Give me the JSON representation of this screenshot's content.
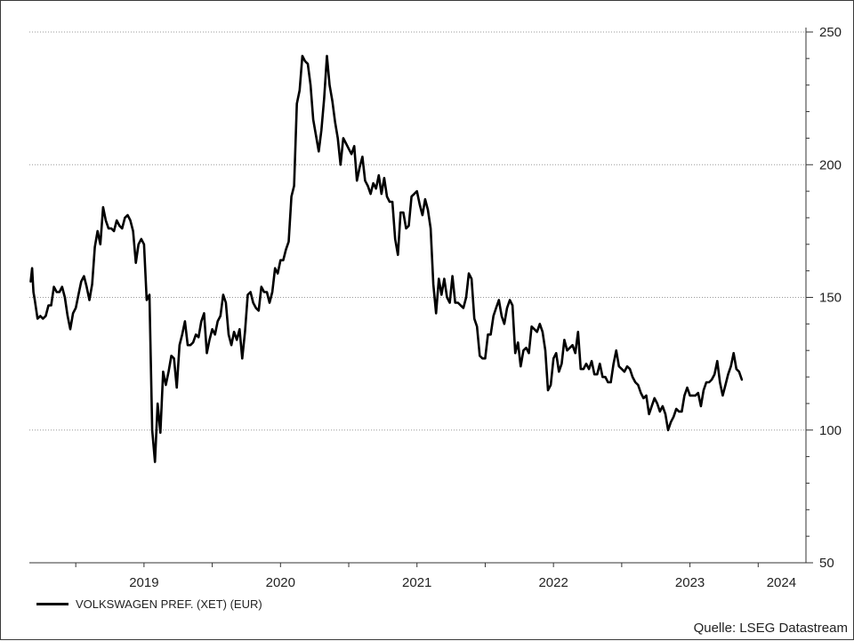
{
  "chart_data": {
    "type": "line",
    "title": "",
    "xlabel": "",
    "ylabel": "",
    "ylim": [
      50,
      250
    ],
    "yticks": [
      50,
      100,
      150,
      200,
      250
    ],
    "ytick_labels": [
      "50",
      "100",
      "150",
      "200",
      "250"
    ],
    "xlim": [
      2018.66,
      2024.35
    ],
    "xticks": [
      2019,
      2020,
      2021,
      2022,
      2023,
      2024
    ],
    "xtick_labels": [
      "2019",
      "2020",
      "2021",
      "2022",
      "2023",
      "2024"
    ],
    "grid": "horizontal dotted",
    "axis_side": "right",
    "series": [
      {
        "name": "VOLKSWAGEN PREF. (XET) (EUR)",
        "color": "#000000",
        "points": [
          [
            2018.67,
            156
          ],
          [
            2018.68,
            161
          ],
          [
            2018.69,
            152
          ],
          [
            2018.7,
            149
          ],
          [
            2018.72,
            142
          ],
          [
            2018.74,
            143
          ],
          [
            2018.76,
            142
          ],
          [
            2018.78,
            143
          ],
          [
            2018.8,
            147
          ],
          [
            2018.82,
            147
          ],
          [
            2018.84,
            154
          ],
          [
            2018.86,
            152
          ],
          [
            2018.88,
            152
          ],
          [
            2018.9,
            154
          ],
          [
            2018.92,
            150
          ],
          [
            2018.94,
            143
          ],
          [
            2018.96,
            138
          ],
          [
            2018.98,
            144
          ],
          [
            2019.0,
            146
          ],
          [
            2019.02,
            151
          ],
          [
            2019.04,
            156
          ],
          [
            2019.06,
            158
          ],
          [
            2019.08,
            154
          ],
          [
            2019.1,
            149
          ],
          [
            2019.12,
            155
          ],
          [
            2019.14,
            169
          ],
          [
            2019.16,
            175
          ],
          [
            2019.18,
            170
          ],
          [
            2019.2,
            184
          ],
          [
            2019.22,
            179
          ],
          [
            2019.24,
            176
          ],
          [
            2019.26,
            176
          ],
          [
            2019.28,
            175
          ],
          [
            2019.3,
            179
          ],
          [
            2019.32,
            177
          ],
          [
            2019.34,
            176
          ],
          [
            2019.36,
            180
          ],
          [
            2019.38,
            181
          ],
          [
            2019.4,
            179
          ],
          [
            2019.42,
            175
          ],
          [
            2019.44,
            163
          ],
          [
            2019.46,
            170
          ],
          [
            2019.48,
            172
          ],
          [
            2019.5,
            170
          ],
          [
            2019.52,
            149
          ],
          [
            2019.54,
            151
          ],
          [
            2019.56,
            100
          ],
          [
            2019.58,
            88
          ],
          [
            2019.6,
            110
          ],
          [
            2019.62,
            99
          ],
          [
            2019.64,
            122
          ],
          [
            2019.66,
            117
          ],
          [
            2019.68,
            122
          ],
          [
            2019.7,
            128
          ],
          [
            2019.72,
            127
          ],
          [
            2019.74,
            116
          ],
          [
            2019.76,
            132
          ],
          [
            2019.78,
            136
          ],
          [
            2019.8,
            141
          ],
          [
            2019.82,
            132
          ],
          [
            2019.84,
            132
          ],
          [
            2019.86,
            133
          ],
          [
            2019.88,
            136
          ],
          [
            2019.9,
            135
          ],
          [
            2019.92,
            141
          ],
          [
            2019.94,
            144
          ],
          [
            2019.96,
            129
          ],
          [
            2019.98,
            134
          ],
          [
            2020.0,
            138
          ],
          [
            2020.02,
            136
          ],
          [
            2020.04,
            141
          ],
          [
            2020.06,
            143
          ],
          [
            2020.08,
            151
          ],
          [
            2020.1,
            148
          ],
          [
            2020.12,
            136
          ],
          [
            2020.14,
            132
          ],
          [
            2020.16,
            137
          ],
          [
            2020.18,
            134
          ],
          [
            2020.2,
            138
          ],
          [
            2020.22,
            127
          ],
          [
            2020.24,
            137
          ],
          [
            2020.26,
            151
          ],
          [
            2020.28,
            152
          ],
          [
            2020.3,
            148
          ],
          [
            2020.32,
            146
          ],
          [
            2020.34,
            145
          ],
          [
            2020.36,
            154
          ],
          [
            2020.38,
            152
          ],
          [
            2020.4,
            152
          ],
          [
            2020.42,
            148
          ],
          [
            2020.44,
            152
          ],
          [
            2020.46,
            161
          ],
          [
            2020.48,
            159
          ],
          [
            2020.5,
            164
          ],
          [
            2020.52,
            164
          ],
          [
            2020.54,
            168
          ],
          [
            2020.56,
            171
          ],
          [
            2020.58,
            188
          ],
          [
            2020.6,
            192
          ],
          [
            2020.62,
            223
          ],
          [
            2020.64,
            228
          ],
          [
            2020.66,
            241
          ],
          [
            2020.68,
            239
          ],
          [
            2020.7,
            238
          ],
          [
            2020.72,
            230
          ],
          [
            2020.74,
            217
          ],
          [
            2020.76,
            211
          ],
          [
            2020.78,
            205
          ],
          [
            2020.8,
            213
          ],
          [
            2020.82,
            225
          ],
          [
            2020.84,
            241
          ],
          [
            2020.86,
            230
          ],
          [
            2020.88,
            224
          ],
          [
            2020.9,
            216
          ],
          [
            2020.92,
            210
          ],
          [
            2020.94,
            200
          ],
          [
            2020.96,
            210
          ],
          [
            2020.98,
            208
          ],
          [
            2021.0,
            206
          ],
          [
            2021.02,
            204
          ],
          [
            2021.04,
            207
          ],
          [
            2021.06,
            194
          ],
          [
            2021.08,
            199
          ],
          [
            2021.1,
            203
          ],
          [
            2021.12,
            194
          ],
          [
            2021.14,
            192
          ],
          [
            2021.16,
            189
          ],
          [
            2021.18,
            193
          ],
          [
            2021.2,
            191
          ],
          [
            2021.22,
            196
          ],
          [
            2021.24,
            189
          ],
          [
            2021.26,
            195
          ],
          [
            2021.28,
            188
          ],
          [
            2021.3,
            186
          ],
          [
            2021.32,
            186
          ],
          [
            2021.34,
            172
          ],
          [
            2021.36,
            166
          ],
          [
            2021.38,
            182
          ],
          [
            2021.4,
            182
          ],
          [
            2021.42,
            176
          ],
          [
            2021.44,
            177
          ],
          [
            2021.46,
            188
          ],
          [
            2021.48,
            189
          ],
          [
            2021.5,
            190
          ],
          [
            2021.52,
            185
          ],
          [
            2021.54,
            181
          ],
          [
            2021.56,
            187
          ],
          [
            2021.58,
            183
          ],
          [
            2021.6,
            176
          ],
          [
            2021.62,
            155
          ],
          [
            2021.64,
            144
          ],
          [
            2021.66,
            157
          ],
          [
            2021.68,
            151
          ],
          [
            2021.7,
            157
          ],
          [
            2021.72,
            150
          ],
          [
            2021.74,
            148
          ],
          [
            2021.76,
            158
          ],
          [
            2021.78,
            148
          ],
          [
            2021.8,
            148
          ],
          [
            2021.82,
            147
          ],
          [
            2021.84,
            146
          ],
          [
            2021.86,
            150
          ],
          [
            2021.88,
            159
          ],
          [
            2021.9,
            157
          ],
          [
            2021.92,
            142
          ],
          [
            2021.94,
            139
          ],
          [
            2021.96,
            128
          ],
          [
            2021.98,
            127
          ],
          [
            2022.0,
            127
          ],
          [
            2022.02,
            136
          ],
          [
            2022.04,
            136
          ],
          [
            2022.06,
            143
          ],
          [
            2022.08,
            146
          ],
          [
            2022.1,
            149
          ],
          [
            2022.12,
            143
          ],
          [
            2022.14,
            140
          ],
          [
            2022.16,
            146
          ],
          [
            2022.18,
            149
          ],
          [
            2022.2,
            147
          ],
          [
            2022.22,
            129
          ],
          [
            2022.24,
            133
          ],
          [
            2022.26,
            124
          ],
          [
            2022.28,
            130
          ],
          [
            2022.3,
            131
          ],
          [
            2022.32,
            129
          ],
          [
            2022.34,
            139
          ],
          [
            2022.36,
            138
          ],
          [
            2022.38,
            137
          ],
          [
            2022.4,
            140
          ],
          [
            2022.42,
            137
          ],
          [
            2022.44,
            130
          ],
          [
            2022.46,
            115
          ],
          [
            2022.48,
            117
          ],
          [
            2022.5,
            127
          ],
          [
            2022.52,
            129
          ],
          [
            2022.54,
            122
          ],
          [
            2022.56,
            125
          ],
          [
            2022.58,
            134
          ],
          [
            2022.6,
            130
          ],
          [
            2022.62,
            131
          ],
          [
            2022.64,
            132
          ],
          [
            2022.66,
            129
          ],
          [
            2022.68,
            137
          ],
          [
            2022.7,
            123
          ],
          [
            2022.72,
            123
          ],
          [
            2022.74,
            125
          ],
          [
            2022.76,
            123
          ],
          [
            2022.78,
            126
          ],
          [
            2022.8,
            121
          ],
          [
            2022.82,
            121
          ],
          [
            2022.84,
            125
          ],
          [
            2022.86,
            120
          ],
          [
            2022.88,
            120
          ],
          [
            2022.9,
            118
          ],
          [
            2022.92,
            118
          ],
          [
            2022.94,
            125
          ],
          [
            2022.96,
            130
          ],
          [
            2022.98,
            124
          ],
          [
            2023.0,
            123
          ],
          [
            2023.02,
            122
          ],
          [
            2023.04,
            124
          ],
          [
            2023.06,
            123
          ],
          [
            2023.08,
            120
          ],
          [
            2023.1,
            118
          ],
          [
            2023.12,
            117
          ],
          [
            2023.14,
            114
          ],
          [
            2023.16,
            112
          ],
          [
            2023.18,
            113
          ],
          [
            2023.2,
            106
          ],
          [
            2023.22,
            109
          ],
          [
            2023.24,
            112
          ],
          [
            2023.26,
            110
          ],
          [
            2023.28,
            107
          ],
          [
            2023.3,
            109
          ],
          [
            2023.32,
            106
          ],
          [
            2023.34,
            100
          ],
          [
            2023.36,
            103
          ],
          [
            2023.38,
            105
          ],
          [
            2023.4,
            108
          ],
          [
            2023.42,
            107
          ],
          [
            2023.44,
            107
          ],
          [
            2023.46,
            113
          ],
          [
            2023.48,
            116
          ],
          [
            2023.5,
            113
          ],
          [
            2023.52,
            113
          ],
          [
            2023.54,
            113
          ],
          [
            2023.56,
            114
          ],
          [
            2023.58,
            109
          ],
          [
            2023.6,
            115
          ],
          [
            2023.62,
            118
          ],
          [
            2023.64,
            118
          ],
          [
            2023.66,
            119
          ],
          [
            2023.68,
            121
          ],
          [
            2023.7,
            126
          ],
          [
            2023.72,
            118
          ],
          [
            2023.74,
            113
          ],
          [
            2023.76,
            117
          ],
          [
            2023.78,
            121
          ],
          [
            2023.8,
            124
          ],
          [
            2023.82,
            129
          ],
          [
            2023.84,
            123
          ],
          [
            2023.86,
            122
          ],
          [
            2023.88,
            119
          ]
        ]
      }
    ],
    "legend": "bottom-left",
    "source": "Quelle: LSEG Datastream"
  }
}
